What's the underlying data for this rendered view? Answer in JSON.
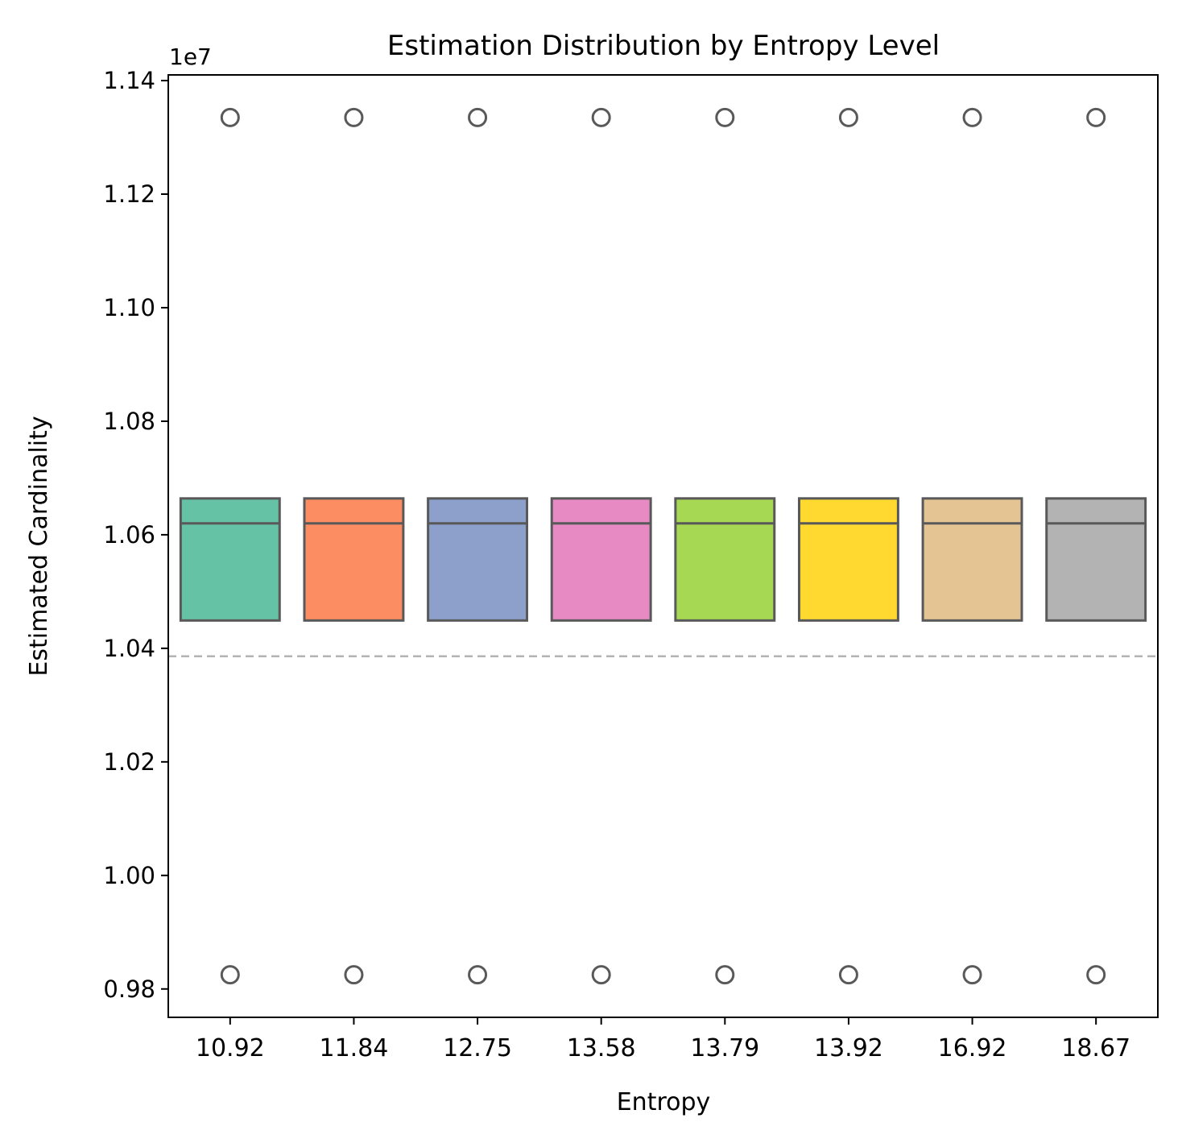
{
  "chart_data": {
    "type": "box",
    "title": "Estimation Distribution by Entropy Level",
    "xlabel": "Entropy",
    "ylabel": "Estimated Cardinality",
    "y_scale_label": "1e7",
    "ylim": [
      0.975,
      1.141
    ],
    "y_ticks": [
      0.98,
      1.0,
      1.02,
      1.04,
      1.06,
      1.08,
      1.1,
      1.12,
      1.14
    ],
    "y_tick_labels": [
      "0.98",
      "1.00",
      "1.02",
      "1.04",
      "1.06",
      "1.08",
      "1.10",
      "1.12",
      "1.14"
    ],
    "categories": [
      "10.92",
      "11.84",
      "12.75",
      "13.58",
      "13.79",
      "13.92",
      "16.92",
      "18.67"
    ],
    "colors": [
      "#66c2a5",
      "#fc8d62",
      "#8da0cb",
      "#e78ac3",
      "#a6d854",
      "#ffd92f",
      "#e5c494",
      "#b3b3b3"
    ],
    "boxes": [
      {
        "category": "10.92",
        "q1": 1.0449,
        "median": 1.062,
        "q3": 1.0664,
        "whisker_low": 1.0449,
        "whisker_high": 1.0664,
        "outliers": [
          0.9825,
          1.1335
        ]
      },
      {
        "category": "11.84",
        "q1": 1.0449,
        "median": 1.062,
        "q3": 1.0664,
        "whisker_low": 1.0449,
        "whisker_high": 1.0664,
        "outliers": [
          0.9825,
          1.1335
        ]
      },
      {
        "category": "12.75",
        "q1": 1.0449,
        "median": 1.062,
        "q3": 1.0664,
        "whisker_low": 1.0449,
        "whisker_high": 1.0664,
        "outliers": [
          0.9825,
          1.1335
        ]
      },
      {
        "category": "13.58",
        "q1": 1.0449,
        "median": 1.062,
        "q3": 1.0664,
        "whisker_low": 1.0449,
        "whisker_high": 1.0664,
        "outliers": [
          0.9825,
          1.1335
        ]
      },
      {
        "category": "13.79",
        "q1": 1.0449,
        "median": 1.062,
        "q3": 1.0664,
        "whisker_low": 1.0449,
        "whisker_high": 1.0664,
        "outliers": [
          0.9825,
          1.1335
        ]
      },
      {
        "category": "13.92",
        "q1": 1.0449,
        "median": 1.062,
        "q3": 1.0664,
        "whisker_low": 1.0449,
        "whisker_high": 1.0664,
        "outliers": [
          0.9825,
          1.1335
        ]
      },
      {
        "category": "16.92",
        "q1": 1.0449,
        "median": 1.062,
        "q3": 1.0664,
        "whisker_low": 1.0449,
        "whisker_high": 1.0664,
        "outliers": [
          0.9825,
          1.1335
        ]
      },
      {
        "category": "18.67",
        "q1": 1.0449,
        "median": 1.062,
        "q3": 1.0664,
        "whisker_low": 1.0449,
        "whisker_high": 1.0664,
        "outliers": [
          0.9825,
          1.1335
        ]
      }
    ],
    "reference_line": {
      "y": 1.0386,
      "style": "dashed",
      "color": "#b3b3b3"
    },
    "box_edge_color": "#595959",
    "grid": false,
    "legend": "none"
  }
}
